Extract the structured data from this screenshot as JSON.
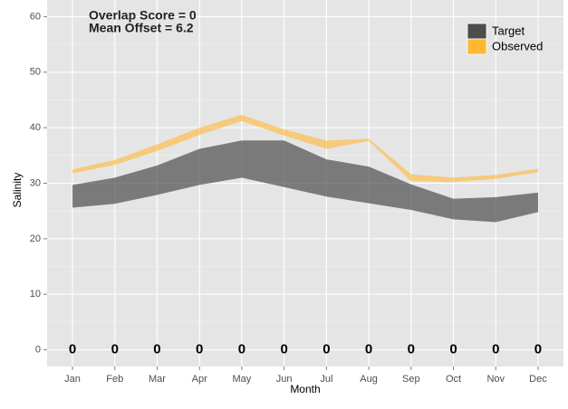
{
  "chart_data": {
    "type": "ribbon",
    "annotations": [
      "Overlap Score = 0",
      "Mean Offset = 6.2"
    ],
    "x_label": "Month",
    "y_label": "Salinity",
    "categories": [
      "Jan",
      "Feb",
      "Mar",
      "Apr",
      "May",
      "Jun",
      "Jul",
      "Aug",
      "Sep",
      "Oct",
      "Nov",
      "Dec"
    ],
    "series": [
      {
        "name": "Target",
        "color": "#4d4d4d",
        "alpha": 0.7,
        "upper": [
          29.7,
          31,
          33.2,
          36.2,
          37.7,
          37.7,
          34.3,
          33,
          29.8,
          27.2,
          27.5,
          28.3
        ],
        "lower": [
          25.6,
          26.3,
          27.9,
          29.7,
          31,
          29.3,
          27.6,
          26.4,
          25.2,
          23.5,
          23,
          24.8
        ]
      },
      {
        "name": "Observed",
        "color": "#ffb833",
        "alpha": 0.6,
        "upper": [
          32.5,
          34.2,
          37,
          40,
          42.3,
          39.7,
          37.7,
          38,
          31.6,
          31,
          31.5,
          32.6
        ],
        "lower": [
          31.8,
          33.3,
          35.8,
          38.7,
          41.2,
          38.6,
          36.2,
          37.6,
          30.4,
          30.2,
          30.8,
          32
        ]
      }
    ],
    "point_labels": [
      0,
      0,
      0,
      0,
      0,
      0,
      0,
      0,
      0,
      0,
      0,
      0
    ],
    "ylim": [
      -3,
      63
    ],
    "yticks": [
      0,
      10,
      20,
      30,
      40,
      50,
      60
    ],
    "grid": true,
    "legend": "top-right"
  }
}
